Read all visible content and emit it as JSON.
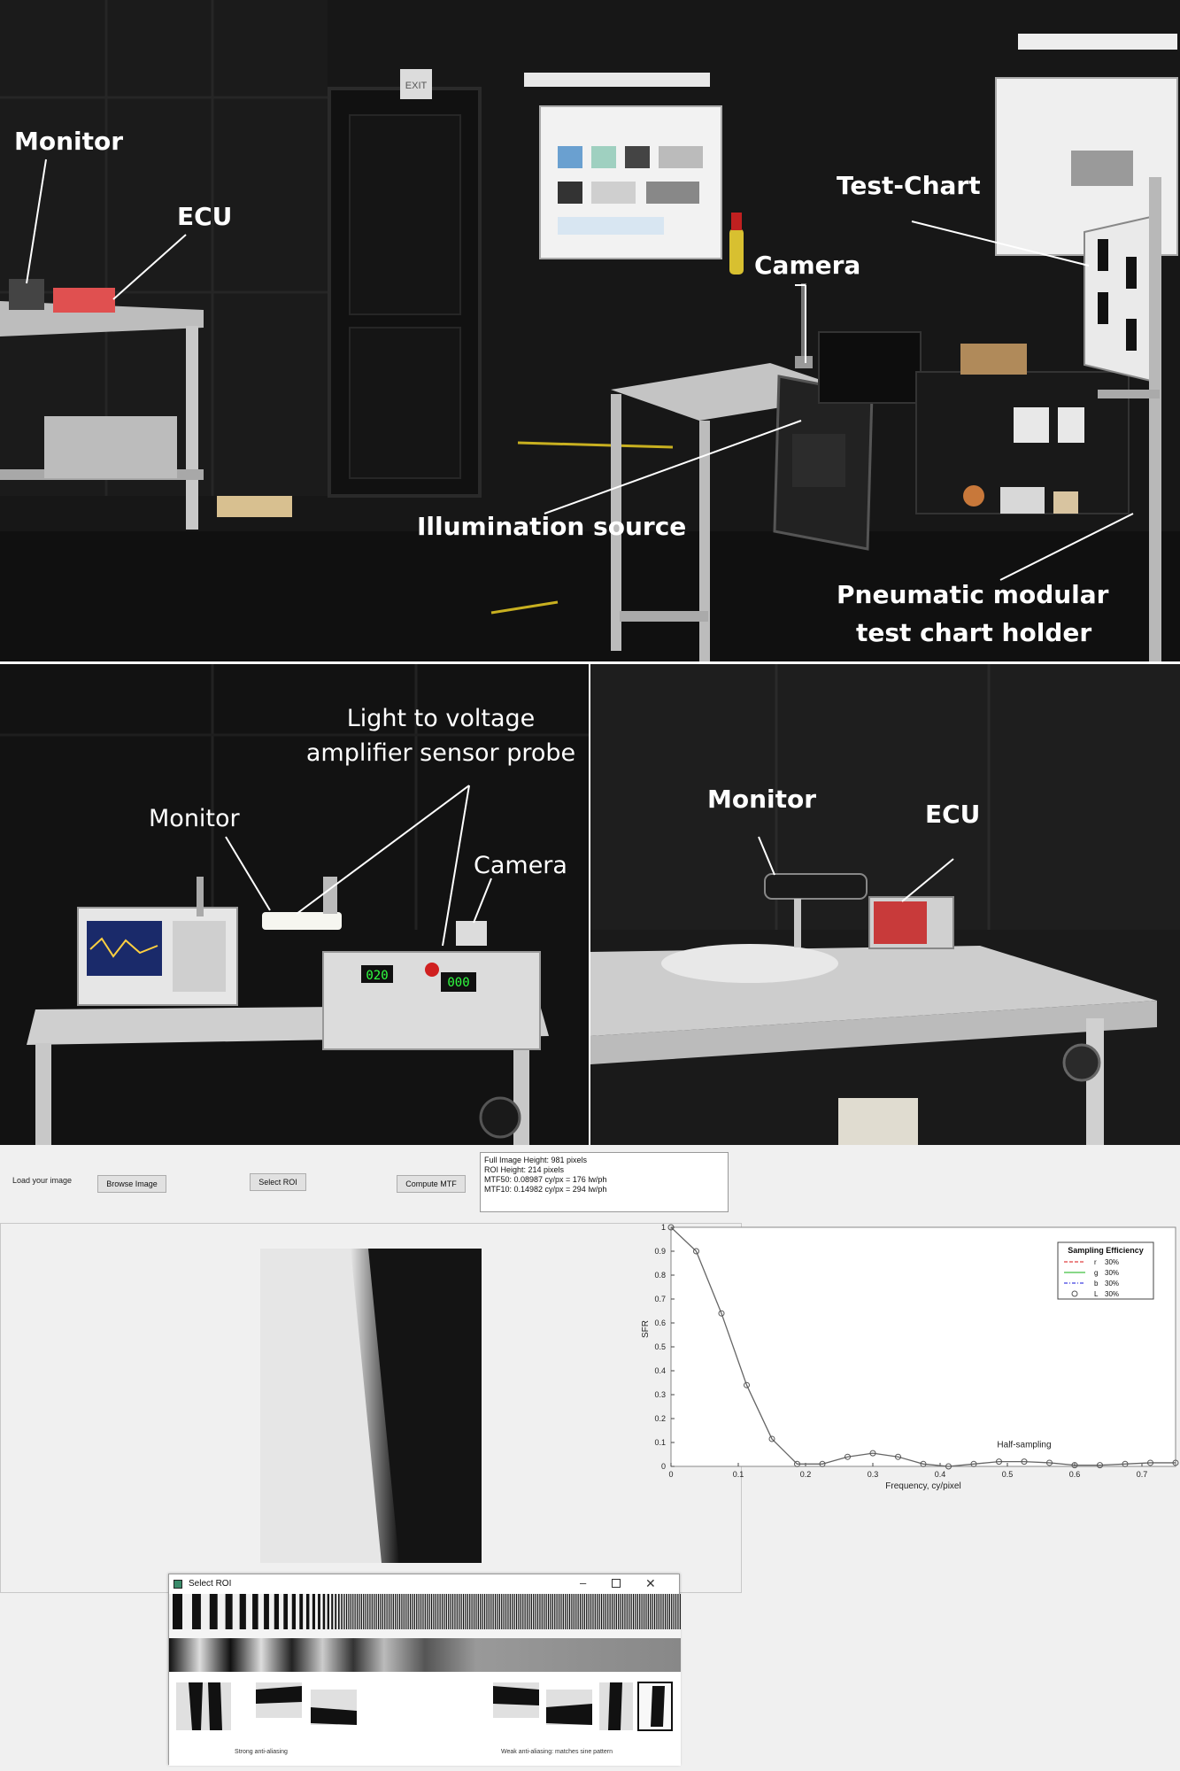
{
  "photo_top": {
    "labels": {
      "monitor": "Monitor",
      "ecu": "ECU",
      "test_chart": "Test-Chart",
      "camera": "Camera",
      "illumination": "Illumination source",
      "holder_line1": "Pneumatic modular",
      "holder_line2": "test chart holder"
    },
    "exit_sign": "EXIT"
  },
  "photo_left": {
    "labels": {
      "probe_line1": "Light to voltage",
      "probe_line2": "amplifier sensor probe",
      "monitor": "Monitor",
      "camera": "Camera"
    },
    "display_left": "020",
    "display_right": "000"
  },
  "photo_right": {
    "labels": {
      "monitor": "Monitor",
      "ecu": "ECU"
    }
  },
  "gui": {
    "load_label": "Load your image",
    "browse_button": "Browse Image",
    "select_roi_button": "Select ROI",
    "compute_button": "Compute MTF",
    "info": {
      "line1": "Full Image Height: 981 pixels",
      "line2": "ROI Height: 214 pixels",
      "line3": "MTF50: 0.08987 cy/px = 176 lw/ph",
      "line4": "MTF10: 0.14982 cy/px = 294 lw/ph"
    },
    "roi_window": {
      "title": "Select ROI",
      "caption_left": "Strong anti-aliasing",
      "caption_right": "Weak anti-aliasing: matches sine pattern"
    }
  },
  "chart_data": {
    "type": "line",
    "xlabel": "Frequency, cy/pixel",
    "ylabel": "SFR",
    "xlim": [
      0,
      0.75
    ],
    "ylim": [
      0,
      1.0
    ],
    "x_ticks": [
      "0",
      "0.1",
      "0.2",
      "0.3",
      "0.4",
      "0.5",
      "0.6",
      "0.7"
    ],
    "y_ticks": [
      "0",
      "0.1",
      "0.2",
      "0.3",
      "0.4",
      "0.5",
      "0.6",
      "0.7",
      "0.8",
      "0.9",
      "1"
    ],
    "annotation": "Half-sampling",
    "legend": {
      "title": "Sampling Efficiency",
      "placement": "top-right",
      "entries": [
        {
          "name": "r",
          "value": "30%",
          "color": "#e04040",
          "style": "dashed"
        },
        {
          "name": "g",
          "value": "30%",
          "color": "#40c040",
          "style": "solid"
        },
        {
          "name": "b",
          "value": "30%",
          "color": "#4040e0",
          "style": "dashdot"
        },
        {
          "name": "L",
          "value": "30%",
          "color": "#555555",
          "style": "circle"
        }
      ]
    },
    "series": [
      {
        "name": "L",
        "x": [
          0,
          0.0375,
          0.075,
          0.1125,
          0.15,
          0.1875,
          0.225,
          0.2625,
          0.3,
          0.3375,
          0.375,
          0.4125,
          0.45,
          0.4875,
          0.525,
          0.5625,
          0.6,
          0.6375,
          0.675,
          0.7125,
          0.75
        ],
        "values": [
          1.0,
          0.9,
          0.64,
          0.34,
          0.115,
          0.01,
          0.01,
          0.04,
          0.055,
          0.04,
          0.01,
          0.0,
          0.01,
          0.02,
          0.02,
          0.015,
          0.005,
          0.005,
          0.01,
          0.015,
          0.015
        ]
      }
    ]
  }
}
